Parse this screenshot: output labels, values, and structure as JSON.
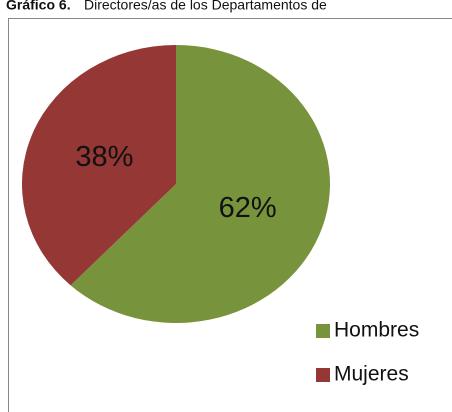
{
  "chart_data": {
    "type": "pie",
    "title": "Gráfico 6.",
    "subtitle": "Directores/as de los Departamentos de",
    "categories": [
      "Hombres",
      "Mujeres"
    ],
    "values": [
      62,
      38
    ],
    "value_labels": [
      "62%",
      "38%"
    ],
    "colors": [
      "#77933c",
      "#953735"
    ],
    "legend": "bottom-right"
  }
}
